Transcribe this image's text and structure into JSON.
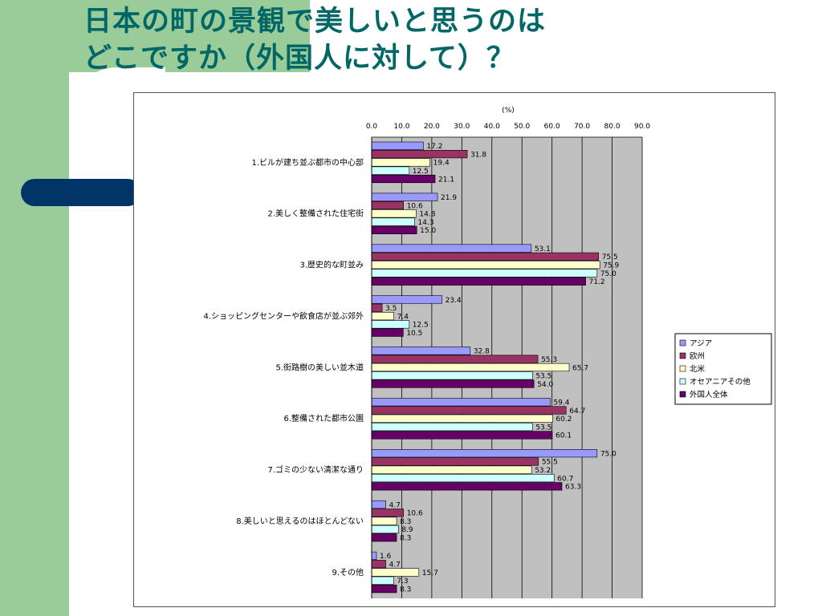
{
  "slide": {
    "title_line1": "日本の町の景観で美しいと思うのは",
    "title_line2": "どこですか（外国人に対して）？"
  },
  "colors": {
    "title": "#006666",
    "band": "#99cc99",
    "accent": "#003366",
    "plot_bg": "#c0c0c0"
  },
  "chart_data": {
    "type": "bar",
    "orientation": "horizontal",
    "unit_label": "(%)",
    "xlim": [
      0,
      90
    ],
    "xticks": [
      "0.0",
      "10.0",
      "20.0",
      "30.0",
      "40.0",
      "50.0",
      "60.0",
      "70.0",
      "80.0",
      "90.0"
    ],
    "grid": true,
    "legend_position": "right",
    "categories": [
      "1.ビルが建ち並ぶ都市の中心部",
      "2.美しく整備された住宅街",
      "3.歴史的な町並み",
      "4.ショッピングセンターや飲食店が並ぶ郊外",
      "5.街路樹の美しい並木道",
      "6.整備された都市公園",
      "7.ゴミの少ない清潔な通り",
      "8.美しいと思えるのはほとんどない",
      "9.その他"
    ],
    "series": [
      {
        "name": "アジア",
        "color": "#9999ff",
        "values": [
          17.2,
          21.9,
          53.1,
          23.4,
          32.8,
          59.4,
          75.0,
          4.7,
          1.6
        ]
      },
      {
        "name": "欧州",
        "color": "#993366",
        "values": [
          31.8,
          10.6,
          75.5,
          3.5,
          55.3,
          64.7,
          55.5,
          10.6,
          4.7
        ]
      },
      {
        "name": "北米",
        "color": "#ffffcc",
        "values": [
          19.4,
          14.8,
          75.9,
          7.4,
          65.7,
          60.2,
          53.2,
          8.3,
          15.7
        ]
      },
      {
        "name": "オセアニアその他",
        "color": "#ccffff",
        "values": [
          12.5,
          14.3,
          75.0,
          12.5,
          53.5,
          53.5,
          60.7,
          8.9,
          7.3
        ]
      },
      {
        "name": "外国人全体",
        "color": "#660066",
        "values": [
          21.1,
          15.0,
          71.2,
          10.5,
          54.0,
          60.1,
          63.3,
          8.3,
          8.3
        ]
      }
    ]
  }
}
